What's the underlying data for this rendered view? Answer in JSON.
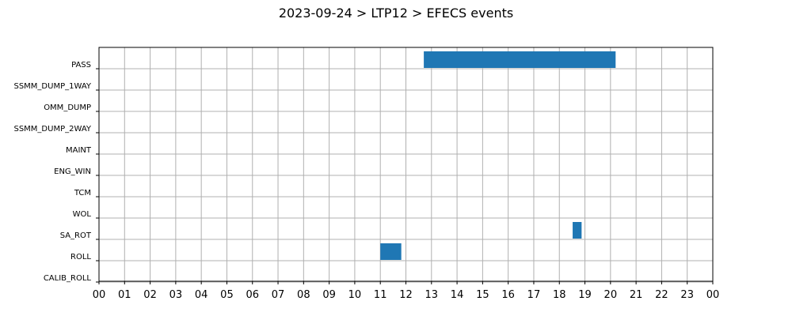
{
  "chart_data": {
    "type": "bar",
    "orientation": "horizontal-timeline",
    "title": "2023-09-24 > LTP12 > EFECS events",
    "xlabel": "",
    "ylabel": "",
    "x_ticks": [
      "00",
      "01",
      "02",
      "03",
      "04",
      "05",
      "06",
      "07",
      "08",
      "09",
      "10",
      "11",
      "12",
      "13",
      "14",
      "15",
      "16",
      "17",
      "18",
      "19",
      "20",
      "21",
      "22",
      "23",
      "00"
    ],
    "xlim": [
      0,
      24
    ],
    "categories": [
      "PASS",
      "SSMM_DUMP_1WAY",
      "OMM_DUMP",
      "SSMM_DUMP_2WAY",
      "MAINT",
      "ENG_WIN",
      "TCM",
      "WOL",
      "SA_ROT",
      "ROLL",
      "CALIB_ROLL"
    ],
    "grid": true,
    "bar_color": "#1f77b4",
    "events": [
      {
        "category": "PASS",
        "start_hour": 12.7,
        "end_hour": 20.2
      },
      {
        "category": "SA_ROT",
        "start_hour": 18.52,
        "end_hour": 18.87
      },
      {
        "category": "ROLL",
        "start_hour": 11.0,
        "end_hour": 11.82
      }
    ]
  }
}
